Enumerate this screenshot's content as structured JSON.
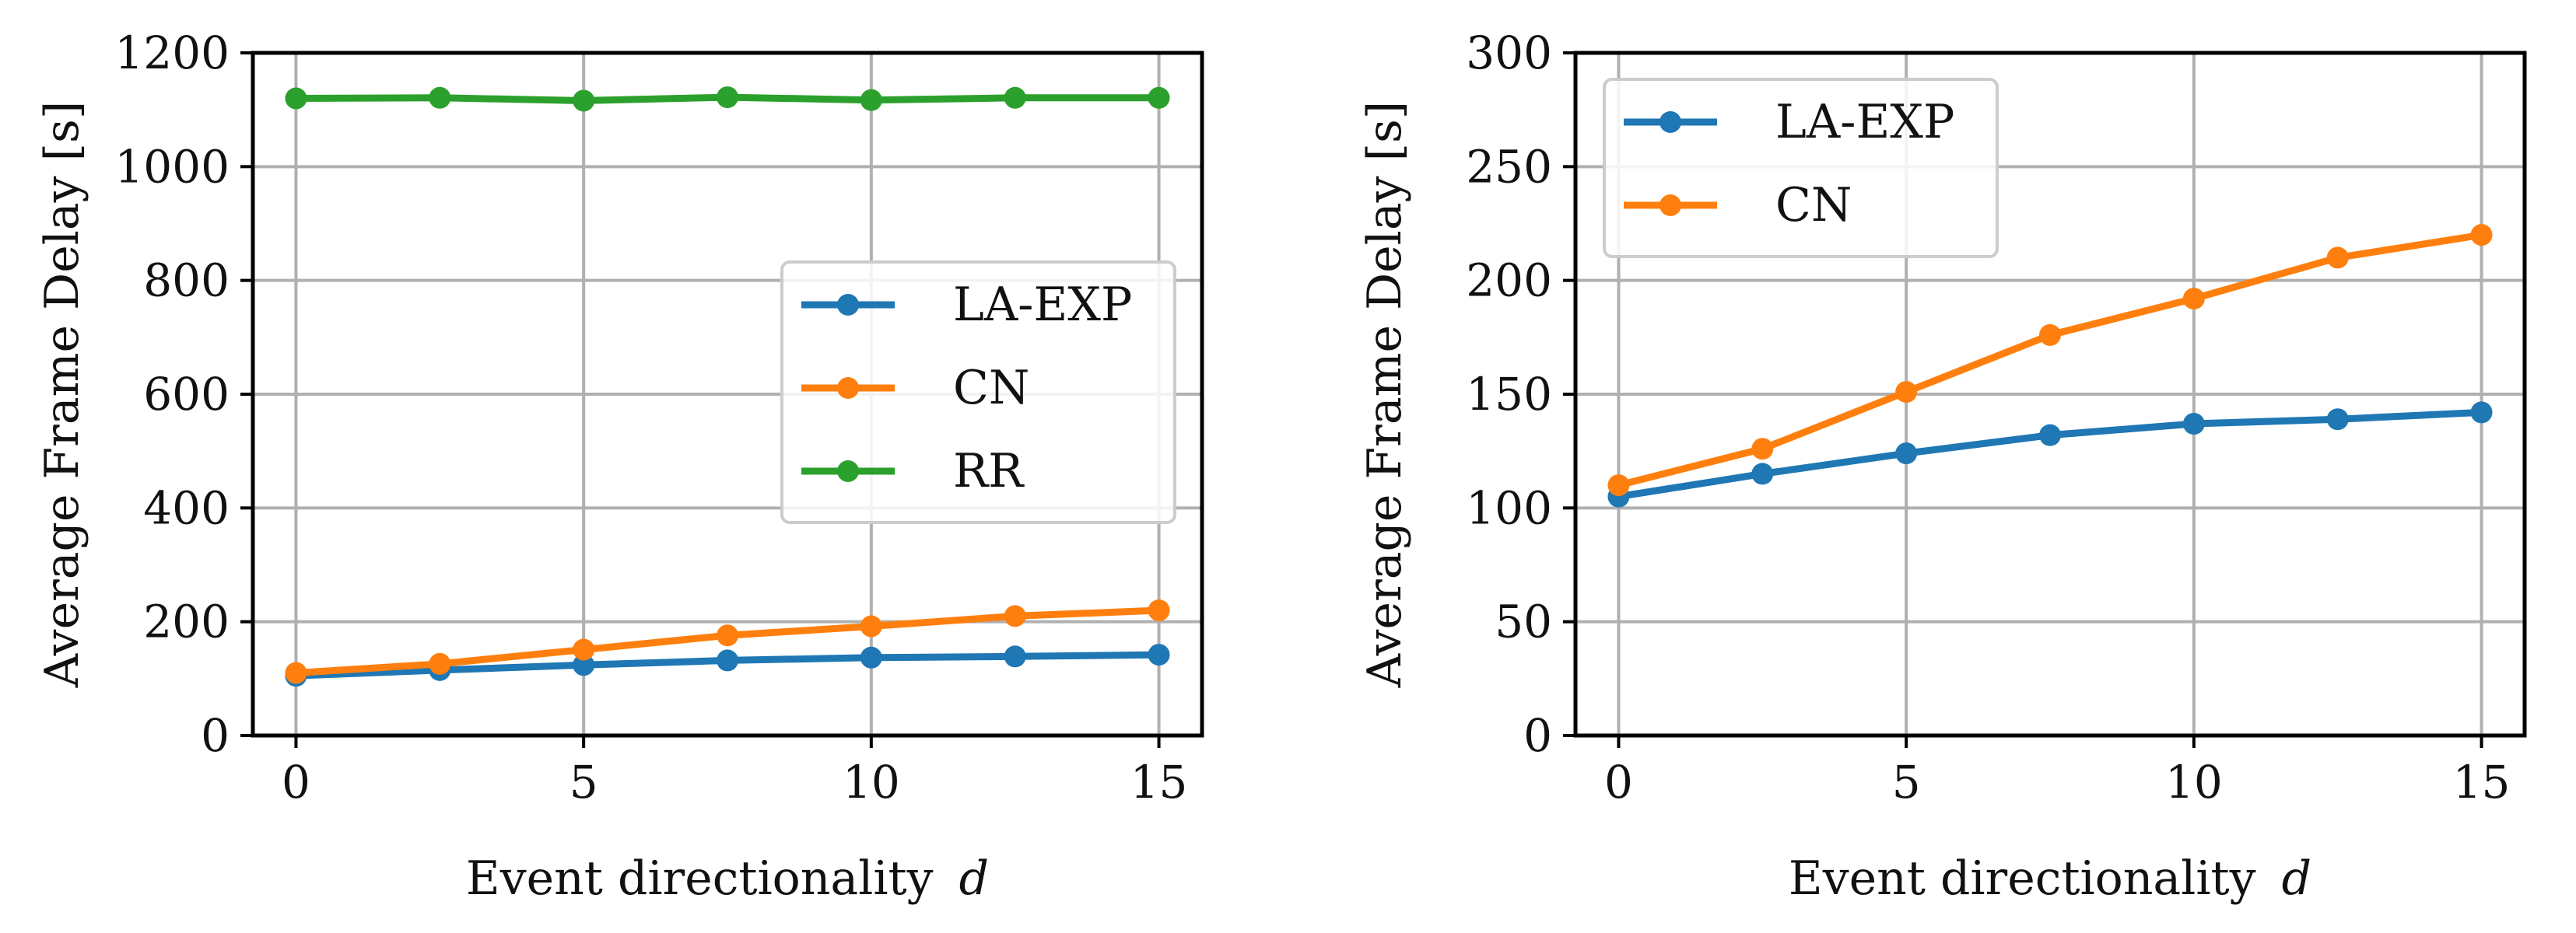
{
  "chart_data": [
    {
      "type": "line",
      "xlabel": "Event directionality",
      "xlabel_var": "d",
      "ylabel": "Average Frame Delay [s]",
      "xlim": [
        -0.75,
        15.75
      ],
      "ylim": [
        0,
        1200
      ],
      "xticks": [
        0,
        5,
        10,
        15
      ],
      "yticks": [
        0,
        200,
        400,
        600,
        800,
        1000,
        1200
      ],
      "grid": true,
      "legend": "center-right",
      "x": [
        0,
        2.5,
        5,
        7.5,
        10,
        12.5,
        15
      ],
      "series": [
        {
          "name": "LA-EXP",
          "color": "#1f77b4",
          "values": [
            105,
            115,
            124,
            132,
            137,
            139,
            142
          ]
        },
        {
          "name": "CN",
          "color": "#ff7f0e",
          "values": [
            110,
            126,
            151,
            176,
            192,
            210,
            220
          ]
        },
        {
          "name": "RR",
          "color": "#2ca02c",
          "values": [
            1120,
            1121,
            1116,
            1122,
            1117,
            1121,
            1121
          ]
        }
      ]
    },
    {
      "type": "line",
      "xlabel": "Event directionality",
      "xlabel_var": "d",
      "ylabel": "Average Frame Delay [s]",
      "xlim": [
        -0.75,
        15.75
      ],
      "ylim": [
        0,
        300
      ],
      "xticks": [
        0,
        5,
        10,
        15
      ],
      "yticks": [
        0,
        50,
        100,
        150,
        200,
        250,
        300
      ],
      "grid": true,
      "legend": "top-left",
      "x": [
        0,
        2.5,
        5,
        7.5,
        10,
        12.5,
        15
      ],
      "series": [
        {
          "name": "LA-EXP",
          "color": "#1f77b4",
          "values": [
            105,
            115,
            124,
            132,
            137,
            139,
            142
          ]
        },
        {
          "name": "CN",
          "color": "#ff7f0e",
          "values": [
            110,
            126,
            151,
            176,
            192,
            210,
            220
          ]
        }
      ]
    }
  ]
}
